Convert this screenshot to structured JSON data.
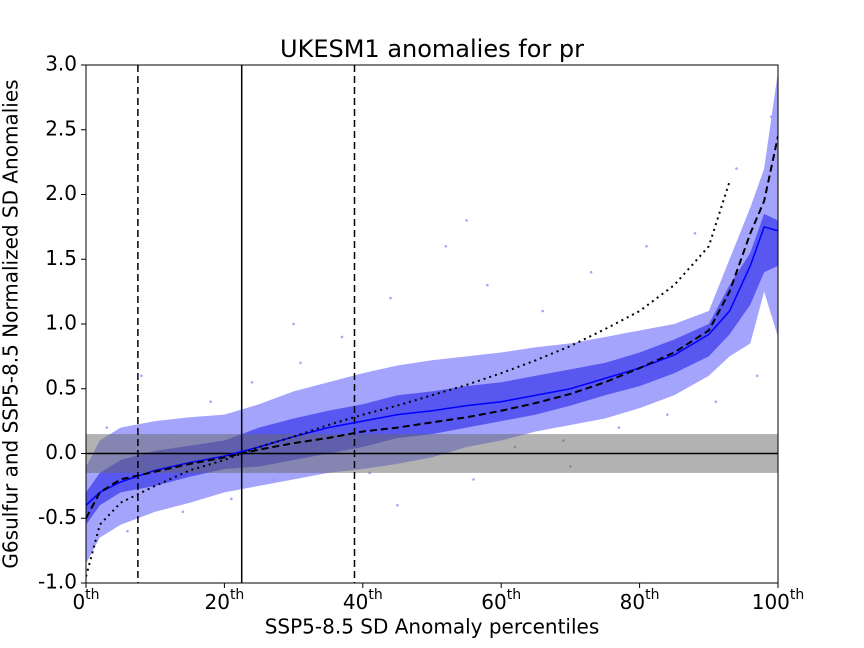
{
  "chart_data": {
    "type": "line",
    "title": "UKESM1 anomalies for pr",
    "xlabel": "SSP5-8.5 SD Anomaly percentiles",
    "ylabel": "G6sulfur and SSP5-8.5 Normalized SD Anomalies",
    "x": [
      0,
      2,
      5,
      10,
      15,
      20,
      25,
      30,
      35,
      40,
      45,
      50,
      55,
      60,
      65,
      70,
      75,
      80,
      85,
      90,
      93,
      96,
      98,
      100
    ],
    "xlim": [
      0,
      100
    ],
    "ylim": [
      -1,
      3
    ],
    "xticks": [
      {
        "value": 0,
        "label": "0th"
      },
      {
        "value": 20,
        "label": "20th"
      },
      {
        "value": 40,
        "label": "40th"
      },
      {
        "value": 60,
        "label": "60th"
      },
      {
        "value": 80,
        "label": "80th"
      },
      {
        "value": 100,
        "label": "100th"
      }
    ],
    "yticks": [
      {
        "value": -1,
        "label": "-1.0"
      },
      -0.5,
      {
        "value": 0,
        "label": "0.0"
      },
      0.5,
      {
        "value": 1,
        "label": "1.0"
      },
      1.5,
      {
        "value": 2,
        "label": "2.0"
      },
      2.5,
      {
        "value": 3,
        "label": "3.0"
      }
    ],
    "bands": [
      {
        "color": "#9a9afc",
        "lower": [
          -0.85,
          -0.65,
          -0.55,
          -0.45,
          -0.38,
          -0.3,
          -0.25,
          -0.2,
          -0.15,
          -0.12,
          -0.08,
          -0.03,
          0.05,
          0.1,
          0.17,
          0.22,
          0.27,
          0.35,
          0.45,
          0.6,
          0.75,
          0.85,
          1.25,
          0.9
        ],
        "upper": [
          -0.1,
          0.1,
          0.2,
          0.25,
          0.28,
          0.3,
          0.38,
          0.48,
          0.55,
          0.62,
          0.68,
          0.72,
          0.75,
          0.78,
          0.82,
          0.85,
          0.9,
          0.95,
          1.0,
          1.1,
          1.5,
          1.9,
          2.2,
          2.95
        ]
      },
      {
        "color": "#5050f0",
        "lower": [
          -0.55,
          -0.4,
          -0.3,
          -0.25,
          -0.18,
          -0.12,
          -0.1,
          -0.05,
          0.0,
          0.05,
          0.12,
          0.15,
          0.2,
          0.25,
          0.3,
          0.37,
          0.45,
          0.52,
          0.62,
          0.75,
          0.92,
          1.15,
          1.4,
          1.45
        ],
        "upper": [
          -0.3,
          -0.15,
          -0.05,
          0.02,
          0.06,
          0.1,
          0.2,
          0.27,
          0.33,
          0.38,
          0.45,
          0.48,
          0.52,
          0.55,
          0.6,
          0.65,
          0.7,
          0.78,
          0.88,
          1.0,
          1.3,
          1.55,
          1.85,
          1.8
        ]
      }
    ],
    "series": [
      {
        "color": "#0000ff",
        "style": "solid",
        "values": [
          -0.4,
          -0.3,
          -0.22,
          -0.13,
          -0.07,
          -0.02,
          0.05,
          0.13,
          0.2,
          0.25,
          0.3,
          0.33,
          0.37,
          0.4,
          0.45,
          0.5,
          0.58,
          0.66,
          0.76,
          0.92,
          1.1,
          1.45,
          1.75,
          1.72
        ]
      },
      {
        "color": "#000000",
        "style": "dashed",
        "values": [
          -0.5,
          -0.3,
          -0.2,
          -0.14,
          -0.08,
          -0.03,
          0.03,
          0.08,
          0.12,
          0.17,
          0.2,
          0.24,
          0.28,
          0.33,
          0.39,
          0.46,
          0.55,
          0.66,
          0.78,
          0.95,
          1.25,
          1.7,
          1.95,
          2.45
        ]
      },
      {
        "color": "#000000",
        "style": "dotted",
        "values": [
          -0.95,
          -0.55,
          -0.38,
          -0.25,
          -0.13,
          -0.05,
          0.05,
          0.13,
          0.22,
          0.3,
          0.37,
          0.45,
          0.53,
          0.62,
          0.72,
          0.83,
          0.96,
          1.1,
          1.3,
          1.6,
          2.1,
          null,
          null,
          null
        ]
      }
    ],
    "scatter": {
      "color": "#8080f0",
      "x": [
        1,
        3,
        6,
        8,
        12,
        14,
        18,
        21,
        24,
        27,
        31,
        33,
        37,
        41,
        44,
        47,
        52,
        56,
        58,
        62,
        66,
        69,
        73,
        77,
        81,
        84,
        88,
        91,
        94,
        97,
        99,
        45,
        55,
        30,
        70
      ],
      "y": [
        -0.7,
        0.2,
        -0.6,
        0.6,
        0.1,
        -0.45,
        0.4,
        -0.35,
        0.55,
        -0.2,
        0.7,
        -0.1,
        0.9,
        -0.15,
        1.2,
        0.0,
        1.6,
        -0.2,
        1.3,
        0.05,
        1.1,
        0.1,
        1.4,
        0.2,
        1.6,
        0.3,
        1.7,
        0.4,
        2.2,
        0.6,
        2.6,
        -0.4,
        1.8,
        1.0,
        -0.1
      ]
    },
    "vlines": [
      {
        "x": 7.5,
        "style": "dashed"
      },
      {
        "x": 22.5,
        "style": "solid"
      },
      {
        "x": 38.8,
        "style": "dashed"
      }
    ],
    "hband": [
      -0.15,
      0.15
    ],
    "hline": 0
  }
}
